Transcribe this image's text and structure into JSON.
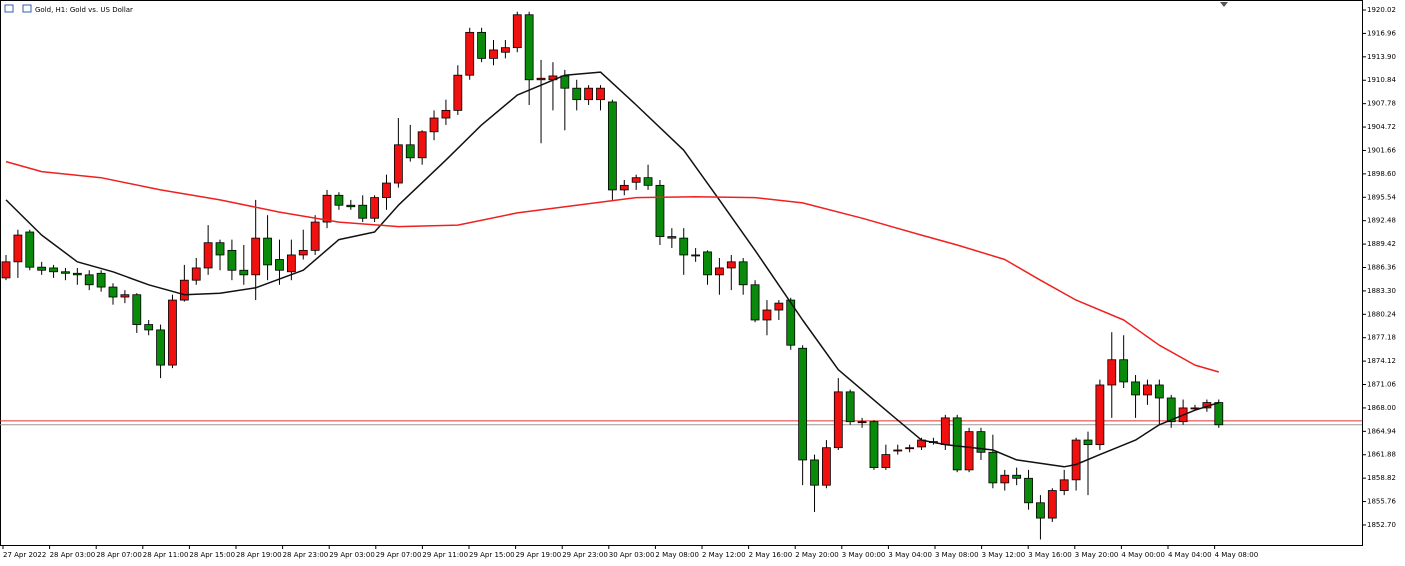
{
  "chart_data": {
    "type": "candlestick",
    "title": "Gold, H1:  Gold vs. US Dollar",
    "up_color": "#f01010",
    "down_color": "#0a8a0a",
    "ylim": [
      1850.08,
      1921.33
    ],
    "yticks": [
      1920.02,
      1916.96,
      {
        "value": 1913.9,
        "label": "1913.90"
      },
      1910.84,
      1907.78,
      1904.72,
      1901.66,
      {
        "value": 1898.6,
        "label": "1898.60"
      },
      1895.54,
      1892.48,
      1889.42,
      1886.36,
      {
        "value": 1883.3,
        "label": "1883.30"
      },
      1880.24,
      1877.18,
      1874.12,
      1871.06,
      {
        "value": 1868,
        "label": "1868.00"
      },
      1864.94,
      1861.88,
      1858.82,
      1855.76,
      {
        "value": 1852.7,
        "label": "1852.70"
      }
    ],
    "x_labels": [
      "27 Apr 2022",
      "28 Apr 03:00",
      "28 Apr 07:00",
      "28 Apr 11:00",
      "28 Apr 15:00",
      "28 Apr 19:00",
      "28 Apr 23:00",
      "29 Apr 03:00",
      "29 Apr 07:00",
      "29 Apr 11:00",
      "29 Apr 15:00",
      "29 Apr 19:00",
      "29 Apr 23:00",
      "30 Apr 03:00",
      "2 May 08:00",
      "2 May 12:00",
      "2 May 16:00",
      "2 May 20:00",
      "3 May 00:00",
      "3 May 04:00",
      "3 May 08:00",
      "3 May 12:00",
      "3 May 16:00",
      "3 May 20:00",
      "4 May 00:00",
      "4 May 04:00",
      "4 May 08:00"
    ],
    "open": [
      1885.0,
      1887.1,
      1891.0,
      1886.4,
      1886.3,
      1885.8,
      1885.6,
      1885.4,
      1885.6,
      1883.8,
      1882.5,
      1882.8,
      1878.9,
      1878.2,
      1873.6,
      1882.1,
      1884.7,
      1886.3,
      1889.6,
      1888.6,
      1886.0,
      1885.4,
      1890.2,
      1887.4,
      1885.8,
      1888.0,
      1888.6,
      1892.3,
      1895.8,
      1894.5,
      1894.5,
      1892.8,
      1895.5,
      1897.4,
      1902.4,
      1900.7,
      1904.1,
      1905.9,
      1906.9,
      1911.5,
      1917.1,
      1913.7,
      1914.5,
      1915.1,
      1919.4,
      1910.9,
      1910.9,
      1911.4,
      1909.8,
      1908.3,
      1908.3,
      1908.0,
      1896.5,
      1897.5,
      1898.1,
      1897.1,
      1890.4,
      1890.2,
      1888.0,
      1888.4,
      1885.4,
      1886.3,
      1887.1,
      1884.1,
      1879.5,
      1880.8,
      1882.1,
      1875.8,
      1861.2,
      1857.9,
      1862.8,
      1870.1,
      1866.2,
      1866.2,
      1860.2,
      1862.5,
      1862.8,
      1862.9,
      1863.6,
      1863.2,
      1866.7,
      1859.9,
      1864.9,
      1862.2,
      1858.2,
      1859.2,
      1858.8,
      1855.6,
      1853.6,
      1857.2,
      1858.6,
      1863.8,
      1863.2,
      1871.0,
      1874.3,
      1871.4,
      1869.7,
      1871.0,
      1869.3,
      1866.2,
      1868.0,
      1868.0,
      1868.7
    ],
    "high": [
      1888.0,
      1891.3,
      1891.3,
      1887.1,
      1886.7,
      1886.3,
      1886.3,
      1886.0,
      1886.0,
      1884.3,
      1883.4,
      1883.0,
      1879.5,
      1878.9,
      1882.8,
      1886.7,
      1887.6,
      1891.9,
      1890.0,
      1890.0,
      1889.3,
      1895.2,
      1893.2,
      1890.0,
      1890.0,
      1891.3,
      1893.2,
      1896.5,
      1896.2,
      1895.2,
      1895.8,
      1895.8,
      1898.5,
      1905.9,
      1905.0,
      1904.3,
      1906.9,
      1908.3,
      1912.8,
      1917.7,
      1917.7,
      1916.1,
      1916.1,
      1919.8,
      1919.8,
      1913.5,
      1913.2,
      1912.2,
      1910.9,
      1910.2,
      1910.2,
      1908.3,
      1897.8,
      1898.5,
      1899.8,
      1897.8,
      1891.5,
      1891.5,
      1888.9,
      1888.6,
      1887.6,
      1888.0,
      1887.6,
      1884.7,
      1882.1,
      1882.1,
      1882.4,
      1876.2,
      1861.9,
      1863.8,
      1871.9,
      1870.4,
      1866.7,
      1866.4,
      1863.2,
      1863.2,
      1863.2,
      1864.1,
      1864.1,
      1867.1,
      1867.1,
      1865.4,
      1865.4,
      1864.5,
      1859.9,
      1860.2,
      1859.9,
      1856.6,
      1857.5,
      1859.9,
      1864.1,
      1864.9,
      1871.7,
      1877.9,
      1877.5,
      1872.3,
      1871.7,
      1871.7,
      1869.7,
      1869.1,
      1868.4,
      1869.1,
      1869.1
    ],
    "low": [
      1884.7,
      1885.0,
      1886.0,
      1885.4,
      1885.0,
      1884.7,
      1884.1,
      1883.4,
      1883.2,
      1881.5,
      1881.7,
      1877.8,
      1877.5,
      1871.9,
      1873.2,
      1881.9,
      1884.1,
      1885.4,
      1886.0,
      1884.7,
      1884.1,
      1882.1,
      1884.7,
      1884.1,
      1884.7,
      1887.4,
      1888.0,
      1891.5,
      1893.9,
      1893.9,
      1892.3,
      1892.3,
      1893.9,
      1896.8,
      1900.2,
      1899.8,
      1903.0,
      1905.0,
      1906.3,
      1910.9,
      1913.2,
      1912.8,
      1913.7,
      1914.5,
      1907.6,
      1902.6,
      1906.9,
      1904.3,
      1906.9,
      1907.6,
      1906.9,
      1895.2,
      1895.8,
      1896.5,
      1896.5,
      1889.3,
      1888.9,
      1885.4,
      1887.1,
      1884.1,
      1882.8,
      1883.4,
      1882.8,
      1879.2,
      1877.5,
      1879.5,
      1875.6,
      1857.9,
      1854.4,
      1857.5,
      1862.5,
      1865.8,
      1865.4,
      1859.9,
      1859.9,
      1861.9,
      1862.2,
      1862.5,
      1863.2,
      1862.5,
      1859.6,
      1859.6,
      1861.2,
      1857.5,
      1857.2,
      1857.9,
      1854.7,
      1850.8,
      1853.1,
      1856.6,
      1857.2,
      1856.6,
      1862.5,
      1866.7,
      1870.6,
      1866.7,
      1868.4,
      1865.8,
      1865.4,
      1865.8,
      1867.7,
      1867.5,
      1865.4
    ],
    "close": [
      1887.1,
      1890.6,
      1886.4,
      1886.0,
      1885.8,
      1885.6,
      1885.4,
      1884.1,
      1883.8,
      1882.5,
      1882.8,
      1878.9,
      1878.2,
      1873.6,
      1882.1,
      1884.7,
      1886.3,
      1889.6,
      1888.0,
      1886.0,
      1885.4,
      1890.2,
      1886.7,
      1886.0,
      1888.0,
      1888.6,
      1892.3,
      1895.8,
      1894.5,
      1894.3,
      1892.8,
      1895.5,
      1897.4,
      1902.4,
      1900.7,
      1904.1,
      1905.9,
      1906.9,
      1911.5,
      1917.1,
      1913.7,
      1914.8,
      1915.1,
      1919.4,
      1910.9,
      1911.1,
      1911.4,
      1909.8,
      1908.3,
      1909.8,
      1909.8,
      1896.5,
      1897.1,
      1898.1,
      1897.1,
      1890.4,
      1890.2,
      1888.0,
      1888.0,
      1885.4,
      1886.3,
      1887.1,
      1884.1,
      1879.5,
      1880.8,
      1881.7,
      1876.2,
      1861.2,
      1857.9,
      1862.8,
      1870.1,
      1866.2,
      1866.2,
      1860.2,
      1861.9,
      1862.5,
      1862.8,
      1863.8,
      1863.6,
      1866.7,
      1859.9,
      1864.9,
      1862.2,
      1858.2,
      1859.2,
      1858.8,
      1855.6,
      1853.6,
      1857.2,
      1858.6,
      1863.8,
      1863.2,
      1871.0,
      1874.3,
      1871.4,
      1869.7,
      1871.0,
      1869.3,
      1866.2,
      1868.0,
      1868.0,
      1868.7,
      1865.8
    ],
    "lines": [
      {
        "color": "#111111",
        "x": [
          0,
          3,
          6,
          9,
          12,
          15,
          18,
          21,
          25,
          28,
          31,
          33,
          37,
          40,
          43,
          47,
          50,
          53,
          57,
          60,
          63,
          67,
          70,
          74,
          77,
          79,
          83,
          85,
          89,
          90,
          92,
          95,
          97,
          100,
          102
        ],
        "values": [
          1895.2,
          1890.6,
          1887.1,
          1885.8,
          1884.1,
          1882.8,
          1883.0,
          1883.7,
          1886.0,
          1890.0,
          1891.0,
          1894.5,
          1900.4,
          1905.0,
          1908.9,
          1911.5,
          1911.9,
          1907.6,
          1901.7,
          1895.2,
          1888.6,
          1879.5,
          1873.0,
          1867.7,
          1863.8,
          1863.2,
          1862.5,
          1861.2,
          1860.3,
          1860.6,
          1861.9,
          1863.8,
          1865.8,
          1867.7,
          1868.7
        ]
      },
      {
        "color": "#f02020",
        "x": [
          0,
          3,
          8,
          13,
          18,
          23,
          28,
          33,
          38,
          43,
          48,
          53,
          58,
          63,
          67,
          72,
          77,
          80,
          84,
          87,
          90,
          94,
          97,
          100,
          102
        ],
        "values": [
          1900.2,
          1898.9,
          1898.1,
          1896.5,
          1895.2,
          1893.6,
          1892.3,
          1891.7,
          1891.9,
          1893.5,
          1894.5,
          1895.5,
          1895.6,
          1895.5,
          1894.8,
          1892.8,
          1890.6,
          1889.3,
          1887.4,
          1884.7,
          1882.1,
          1879.5,
          1876.2,
          1873.6,
          1872.7
        ]
      }
    ],
    "price_lines": [
      {
        "value": 1866.3,
        "color": "#e03030"
      },
      {
        "value": 1865.8,
        "color": "#999999"
      }
    ]
  }
}
